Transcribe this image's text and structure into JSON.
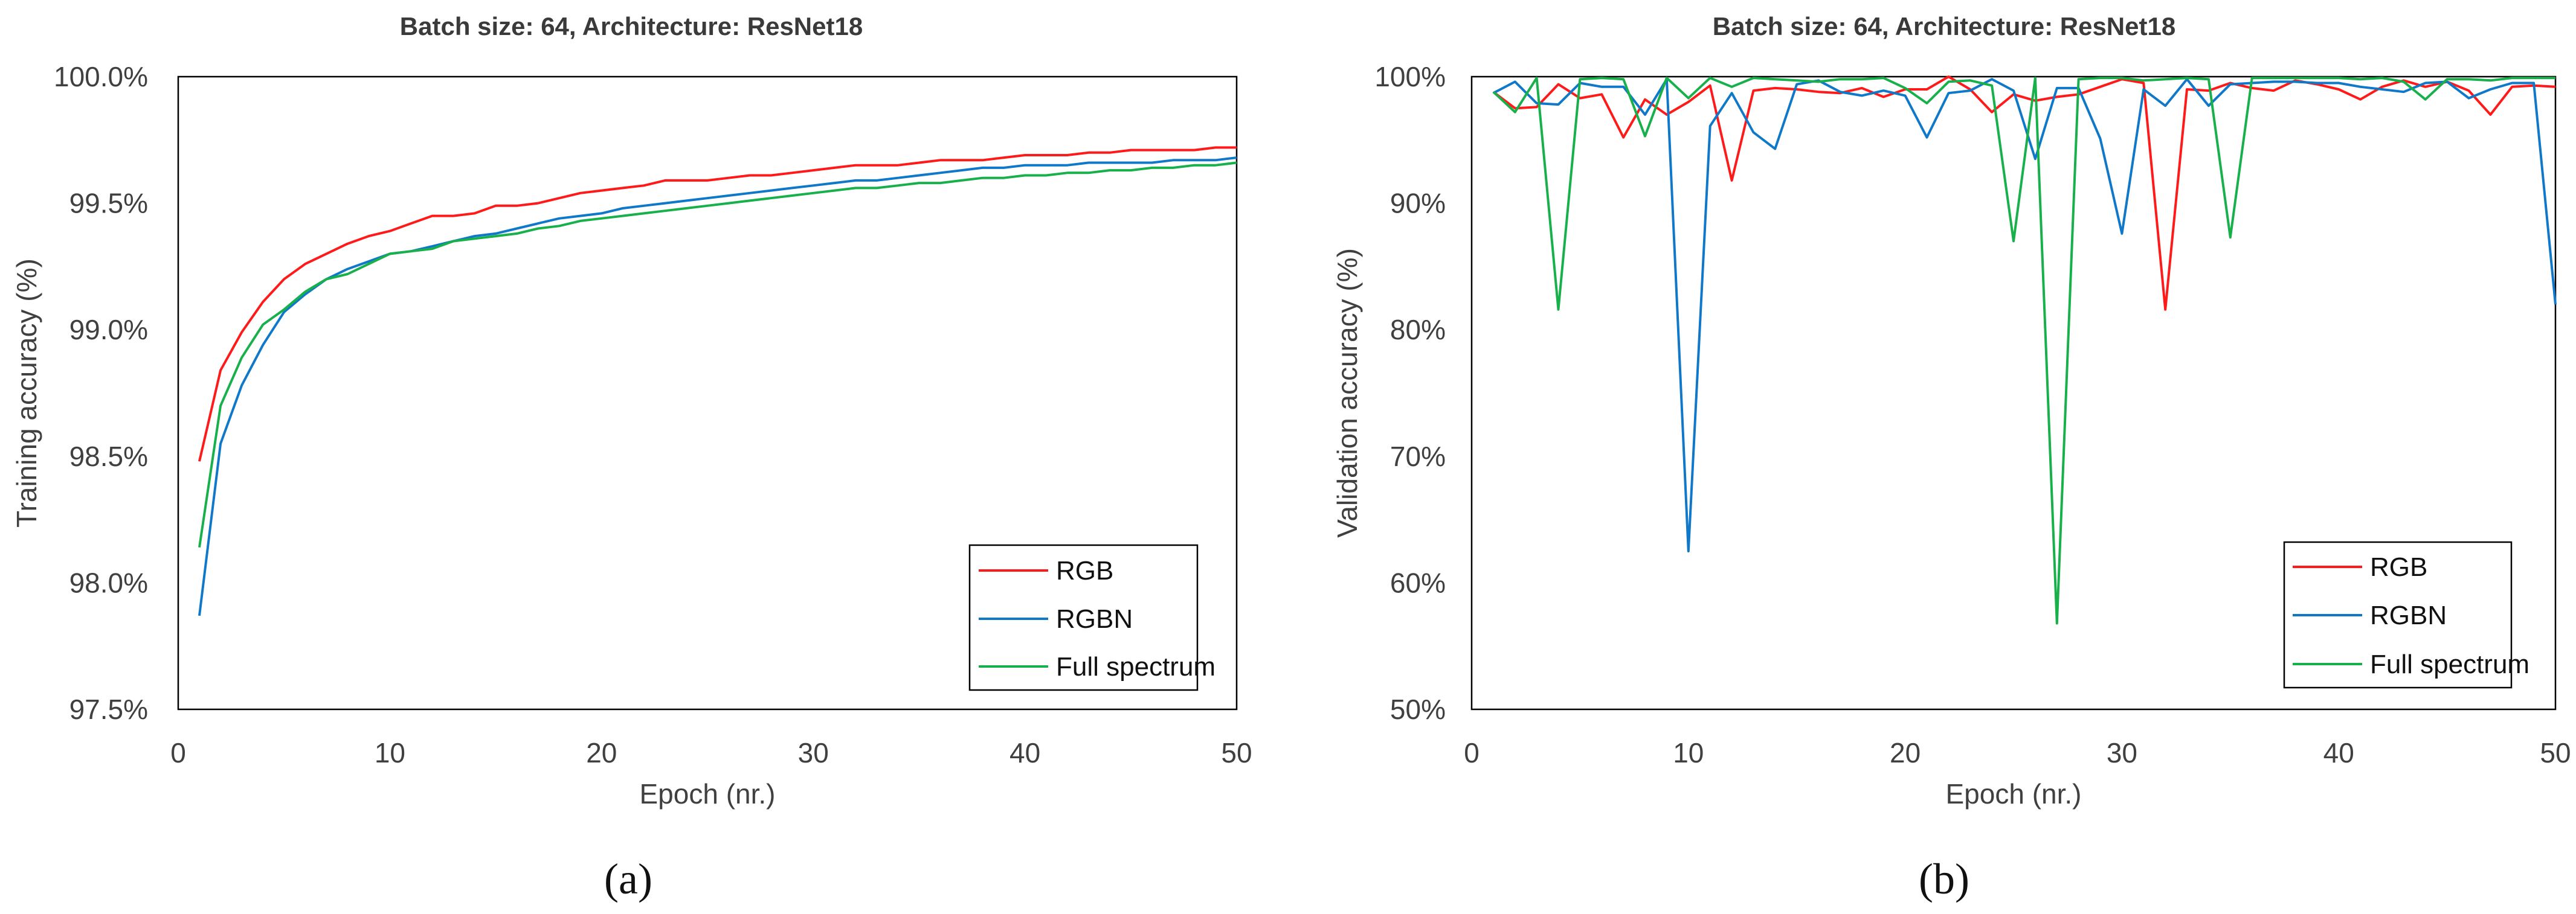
{
  "colors": {
    "RGB": "#ff1a1a",
    "RGBN": "#0f78c8",
    "Full spectrum": "#17b04b",
    "axis": "#000000",
    "tick_text": "#404040",
    "title_text": "#3a3a3a"
  },
  "chart_data": [
    {
      "type": "line",
      "panel_label": "(a)",
      "title": "Batch size: 64, Architecture: ResNet18",
      "xlabel": "Epoch (nr.)",
      "ylabel": "Training accuracy (%)",
      "xlim": [
        0,
        50
      ],
      "ylim": [
        97.5,
        100.0
      ],
      "xticks": [
        0,
        10,
        20,
        30,
        40,
        50
      ],
      "yticks": [
        97.5,
        98.0,
        98.5,
        99.0,
        99.5,
        100.0
      ],
      "ytick_labels": [
        "97.5%",
        "98.0%",
        "98.5%",
        "99.0%",
        "99.5%",
        "100.0%"
      ],
      "grid": false,
      "legend_position": "bottom-right",
      "x": [
        1,
        2,
        3,
        4,
        5,
        6,
        7,
        8,
        9,
        10,
        11,
        12,
        13,
        14,
        15,
        16,
        17,
        18,
        19,
        20,
        21,
        22,
        23,
        24,
        25,
        26,
        27,
        28,
        29,
        30,
        31,
        32,
        33,
        34,
        35,
        36,
        37,
        38,
        39,
        40,
        41,
        42,
        43,
        44,
        45,
        46,
        47,
        48,
        49,
        50
      ],
      "series": [
        {
          "name": "RGB",
          "values": [
            98.48,
            98.84,
            98.99,
            99.11,
            99.2,
            99.26,
            99.3,
            99.34,
            99.37,
            99.39,
            99.42,
            99.45,
            99.45,
            99.46,
            99.49,
            99.49,
            99.5,
            99.52,
            99.54,
            99.55,
            99.56,
            99.57,
            99.59,
            99.59,
            99.59,
            99.6,
            99.61,
            99.61,
            99.62,
            99.63,
            99.64,
            99.65,
            99.65,
            99.65,
            99.66,
            99.67,
            99.67,
            99.67,
            99.68,
            99.69,
            99.69,
            99.69,
            99.7,
            99.7,
            99.71,
            99.71,
            99.71,
            99.71,
            99.72,
            99.72
          ]
        },
        {
          "name": "RGBN",
          "values": [
            97.87,
            98.55,
            98.78,
            98.94,
            99.07,
            99.14,
            99.2,
            99.24,
            99.27,
            99.3,
            99.31,
            99.33,
            99.35,
            99.37,
            99.38,
            99.4,
            99.42,
            99.44,
            99.45,
            99.46,
            99.48,
            99.49,
            99.5,
            99.51,
            99.52,
            99.53,
            99.54,
            99.55,
            99.56,
            99.57,
            99.58,
            99.59,
            99.59,
            99.6,
            99.61,
            99.62,
            99.63,
            99.64,
            99.64,
            99.65,
            99.65,
            99.65,
            99.66,
            99.66,
            99.66,
            99.66,
            99.67,
            99.67,
            99.67,
            99.68
          ]
        },
        {
          "name": "Full spectrum",
          "values": [
            98.14,
            98.7,
            98.89,
            99.02,
            99.08,
            99.15,
            99.2,
            99.22,
            99.26,
            99.3,
            99.31,
            99.32,
            99.35,
            99.36,
            99.37,
            99.38,
            99.4,
            99.41,
            99.43,
            99.44,
            99.45,
            99.46,
            99.47,
            99.48,
            99.49,
            99.5,
            99.51,
            99.52,
            99.53,
            99.54,
            99.55,
            99.56,
            99.56,
            99.57,
            99.58,
            99.58,
            99.59,
            99.6,
            99.6,
            99.61,
            99.61,
            99.62,
            99.62,
            99.63,
            99.63,
            99.64,
            99.64,
            99.65,
            99.65,
            99.66
          ]
        }
      ]
    },
    {
      "type": "line",
      "panel_label": "(b)",
      "title": "Batch size: 64, Architecture: ResNet18",
      "xlabel": "Epoch (nr.)",
      "ylabel": "Validation accuracy (%)",
      "xlim": [
        0,
        50
      ],
      "ylim": [
        50,
        100
      ],
      "xticks": [
        0,
        10,
        20,
        30,
        40,
        50
      ],
      "yticks": [
        50,
        60,
        70,
        80,
        90,
        100
      ],
      "ytick_labels": [
        "50%",
        "60%",
        "70%",
        "80%",
        "90%",
        "100%"
      ],
      "grid": false,
      "legend_position": "bottom-right",
      "x": [
        1,
        2,
        3,
        4,
        5,
        6,
        7,
        8,
        9,
        10,
        11,
        12,
        13,
        14,
        15,
        16,
        17,
        18,
        19,
        20,
        21,
        22,
        23,
        24,
        25,
        26,
        27,
        28,
        29,
        30,
        31,
        32,
        33,
        34,
        35,
        36,
        37,
        38,
        39,
        40,
        41,
        42,
        43,
        44,
        45,
        46,
        47,
        48,
        49,
        50
      ],
      "series": [
        {
          "name": "RGB",
          "values": [
            98.8,
            97.5,
            97.6,
            99.4,
            98.3,
            98.6,
            95.2,
            98.2,
            97.0,
            98.0,
            99.3,
            91.8,
            98.9,
            99.1,
            99.0,
            98.8,
            98.7,
            99.1,
            98.4,
            99.0,
            99.0,
            100.0,
            99.0,
            97.2,
            98.6,
            98.1,
            98.4,
            98.6,
            99.2,
            99.8,
            99.5,
            81.6,
            99.0,
            98.9,
            99.5,
            99.1,
            98.9,
            99.7,
            99.4,
            99.0,
            98.2,
            99.2,
            99.7,
            99.2,
            99.6,
            98.9,
            97.0,
            99.2,
            99.3,
            99.2
          ]
        },
        {
          "name": "RGBN",
          "values": [
            98.7,
            99.6,
            97.9,
            97.8,
            99.5,
            99.2,
            99.2,
            97.0,
            99.8,
            62.5,
            96.1,
            98.7,
            95.6,
            94.3,
            99.4,
            99.7,
            98.8,
            98.5,
            98.9,
            98.5,
            95.2,
            98.7,
            98.9,
            99.8,
            98.9,
            93.5,
            99.1,
            99.1,
            95.1,
            87.6,
            99.0,
            97.7,
            99.8,
            97.7,
            99.4,
            99.5,
            99.6,
            99.6,
            99.5,
            99.5,
            99.2,
            99.0,
            98.8,
            99.5,
            99.6,
            98.3,
            99.0,
            99.5,
            99.5,
            82.0
          ]
        },
        {
          "name": "Full spectrum",
          "values": [
            98.8,
            97.2,
            99.9,
            81.6,
            99.8,
            99.9,
            99.8,
            95.3,
            99.9,
            98.3,
            99.9,
            99.2,
            99.9,
            99.8,
            99.7,
            99.6,
            99.8,
            99.8,
            99.9,
            99.1,
            97.9,
            99.6,
            99.7,
            99.3,
            87.0,
            99.9,
            56.8,
            99.8,
            99.9,
            99.9,
            99.7,
            99.8,
            99.9,
            99.8,
            87.3,
            99.9,
            99.9,
            99.9,
            99.9,
            99.9,
            99.8,
            99.9,
            99.6,
            98.2,
            99.8,
            99.8,
            99.7,
            99.9,
            99.9,
            99.9
          ]
        }
      ]
    }
  ]
}
